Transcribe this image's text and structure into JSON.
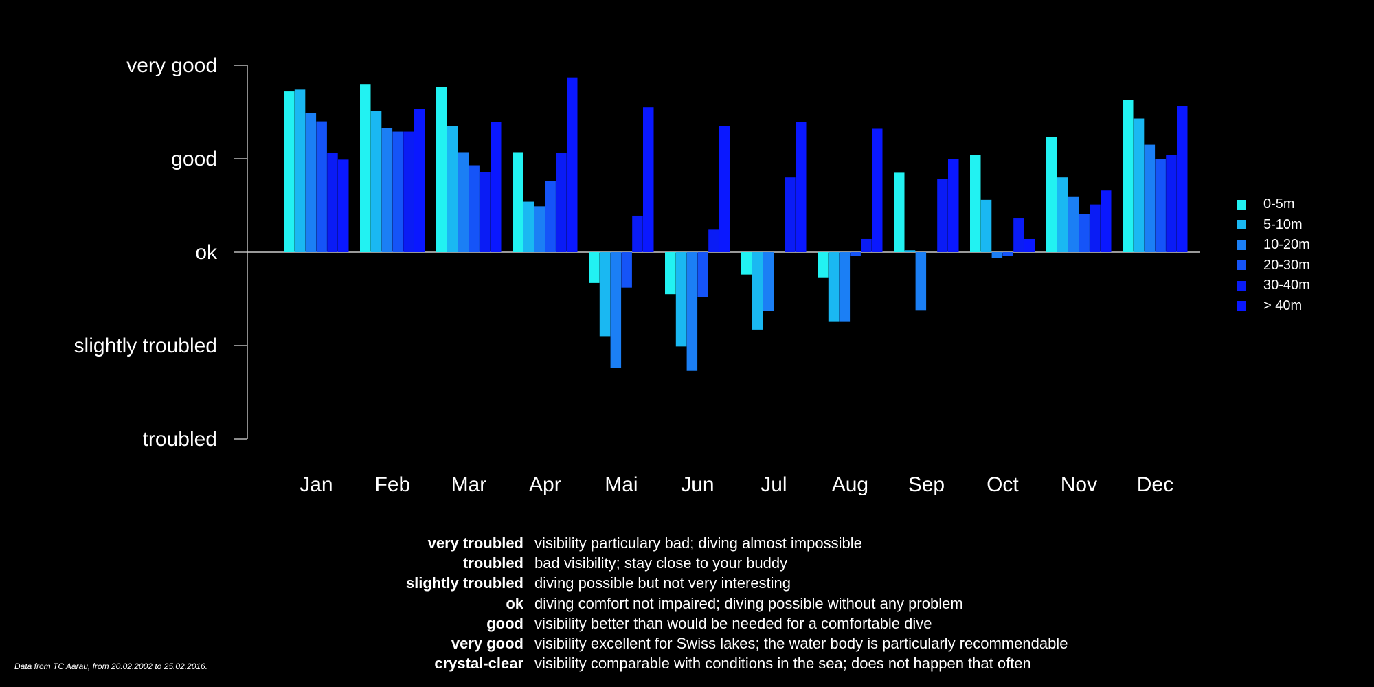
{
  "chart_data": {
    "type": "bar",
    "categories": [
      "Jan",
      "Feb",
      "Mar",
      "Apr",
      "Mai",
      "Jun",
      "Jul",
      "Aug",
      "Sep",
      "Oct",
      "Nov",
      "Dec"
    ],
    "y_levels": [
      "troubled",
      "slightly troubled",
      "ok",
      "good",
      "very good"
    ],
    "ylim": [
      -2,
      2
    ],
    "series": [
      {
        "name": "0-5m",
        "color": "#22f2f2",
        "values": [
          1.72,
          1.8,
          1.77,
          1.07,
          -0.33,
          -0.45,
          -0.24,
          -0.27,
          0.85,
          1.04,
          1.23,
          1.63
        ]
      },
      {
        "name": "5-10m",
        "color": "#1ab8f2",
        "values": [
          1.74,
          1.51,
          1.35,
          0.54,
          -0.9,
          -1.01,
          -0.83,
          -0.74,
          0.02,
          0.56,
          0.8,
          1.43
        ]
      },
      {
        "name": "10-20m",
        "color": "#1b7ff5",
        "values": [
          1.49,
          1.33,
          1.07,
          0.49,
          -1.24,
          -1.27,
          -0.63,
          -0.74,
          -0.62,
          -0.06,
          0.59,
          1.15
        ]
      },
      {
        "name": "20-30m",
        "color": "#1554f8",
        "values": [
          1.4,
          1.29,
          0.93,
          0.76,
          -0.38,
          -0.48,
          0.0,
          -0.04,
          0.0,
          -0.04,
          0.41,
          1.0
        ]
      },
      {
        "name": "30-40m",
        "color": "#0a1cf5",
        "values": [
          1.06,
          1.29,
          0.86,
          1.06,
          0.39,
          0.24,
          0.8,
          0.14,
          0.78,
          0.36,
          0.51,
          1.04
        ]
      },
      {
        "name": "> 40m",
        "color": "#0a18ff",
        "values": [
          0.99,
          1.53,
          1.39,
          1.87,
          1.55,
          1.35,
          1.39,
          1.32,
          1.0,
          0.14,
          0.66,
          1.56
        ]
      }
    ]
  },
  "legend": [
    {
      "label": "0-5m",
      "color": "#22f2f2"
    },
    {
      "label": "5-10m",
      "color": "#1ab8f2"
    },
    {
      "label": "10-20m",
      "color": "#1b7ff5"
    },
    {
      "label": "20-30m",
      "color": "#1554f8"
    },
    {
      "label": "30-40m",
      "color": "#0a1cf5"
    },
    {
      "label": "> 40m",
      "color": "#0a18ff"
    }
  ],
  "definitions": [
    {
      "term": "very troubled",
      "desc": "visibility particulary bad; diving almost impossible"
    },
    {
      "term": "troubled",
      "desc": "bad visibility; stay close to your buddy"
    },
    {
      "term": "slightly troubled",
      "desc": "diving possible but not very interesting"
    },
    {
      "term": "ok",
      "desc": "diving comfort not impaired; diving possible without any problem"
    },
    {
      "term": "good",
      "desc": "visibility better than would be needed for a comfortable dive"
    },
    {
      "term": "very good",
      "desc": "visibility excellent for Swiss lakes; the water body is particularly recommendable"
    },
    {
      "term": "crystal-clear",
      "desc": "visibility comparable with conditions in the sea; does not happen that often"
    }
  ],
  "source_note": "Data from TC Aarau, from 20.02.2002 to 25.02.2016."
}
